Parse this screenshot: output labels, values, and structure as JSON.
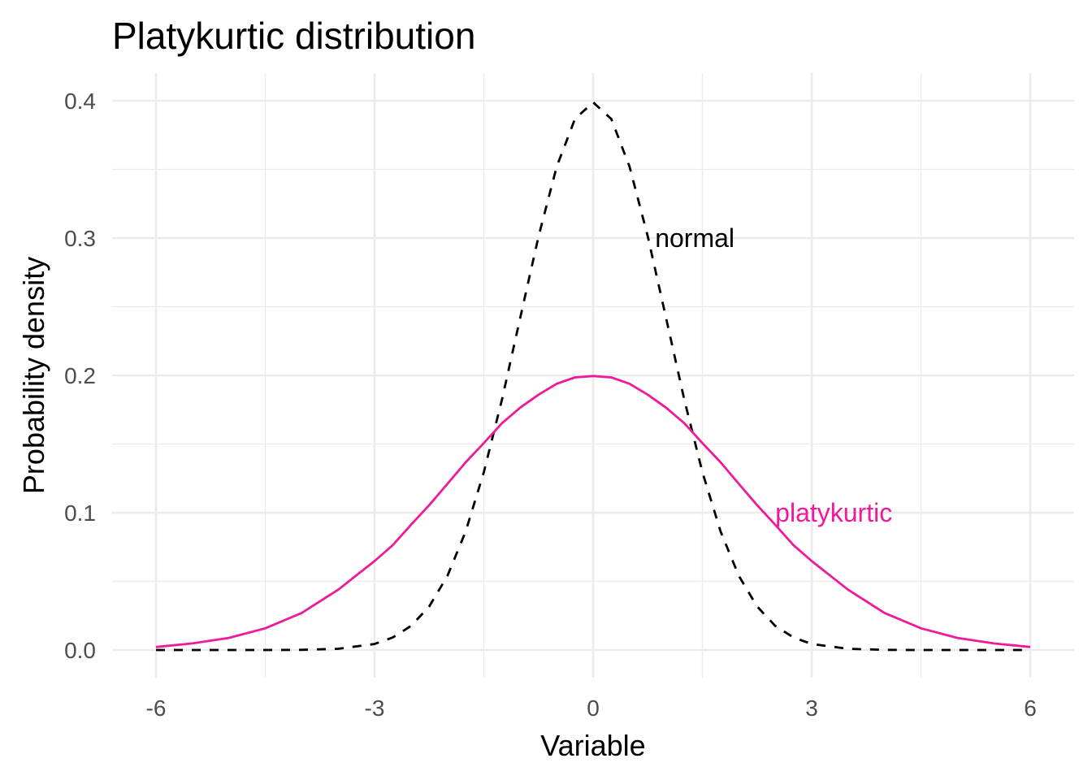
{
  "chart_data": {
    "type": "line",
    "title": "Platykurtic distribution",
    "xlabel": "Variable",
    "ylabel": "Probability density",
    "xlim": [
      -6,
      6
    ],
    "ylim": [
      0,
      0.4
    ],
    "x_ticks": [
      -6,
      -3,
      0,
      3,
      6
    ],
    "x_tick_labels": [
      "-6",
      "-3",
      "0",
      "3",
      "6"
    ],
    "y_ticks": [
      0,
      0.1,
      0.2,
      0.3,
      0.4
    ],
    "y_tick_labels": [
      "0.0",
      "0.1",
      "0.2",
      "0.3",
      "0.4"
    ],
    "grid": true,
    "legend": "none",
    "x": [
      -6,
      -5.5,
      -5,
      -4.5,
      -4,
      -3.5,
      -3,
      -2.75,
      -2.5,
      -2.25,
      -2,
      -1.75,
      -1.5,
      -1.25,
      -1,
      -0.75,
      -0.5,
      -0.25,
      0,
      0.25,
      0.5,
      0.75,
      1,
      1.25,
      1.5,
      1.75,
      2,
      2.25,
      2.5,
      2.75,
      3,
      3.5,
      4,
      4.5,
      5,
      5.5,
      6
    ],
    "series": [
      {
        "name": "normal",
        "color": "#000000",
        "linestyle": "dashed",
        "values": [
          0.0,
          0.0,
          0.0,
          0.0,
          0.0001,
          0.0009,
          0.0044,
          0.0091,
          0.0175,
          0.0317,
          0.054,
          0.0863,
          0.1295,
          0.1826,
          0.242,
          0.3011,
          0.3521,
          0.3867,
          0.3989,
          0.3867,
          0.3521,
          0.3011,
          0.242,
          0.1826,
          0.1295,
          0.0863,
          0.054,
          0.0317,
          0.0175,
          0.0091,
          0.0044,
          0.0009,
          0.0001,
          0.0,
          0.0,
          0.0,
          0.0
        ]
      },
      {
        "name": "platykurtic",
        "color": "#ef1a9a",
        "linestyle": "solid",
        "values": [
          0.0022,
          0.0048,
          0.0088,
          0.0158,
          0.027,
          0.0439,
          0.0648,
          0.0764,
          0.0912,
          0.1055,
          0.121,
          0.1367,
          0.1507,
          0.1652,
          0.1765,
          0.1859,
          0.1939,
          0.1985,
          0.1995,
          0.1985,
          0.1939,
          0.1859,
          0.1765,
          0.1652,
          0.1507,
          0.1367,
          0.121,
          0.1055,
          0.0912,
          0.0764,
          0.0648,
          0.0439,
          0.027,
          0.0158,
          0.0088,
          0.0048,
          0.0022
        ]
      }
    ],
    "annotations": [
      {
        "text": "normal",
        "x": 0.85,
        "y": 0.3,
        "color": "#000000"
      },
      {
        "text": "platykurtic",
        "x": 2.5,
        "y": 0.1,
        "color": "#ef1a9a"
      }
    ]
  }
}
